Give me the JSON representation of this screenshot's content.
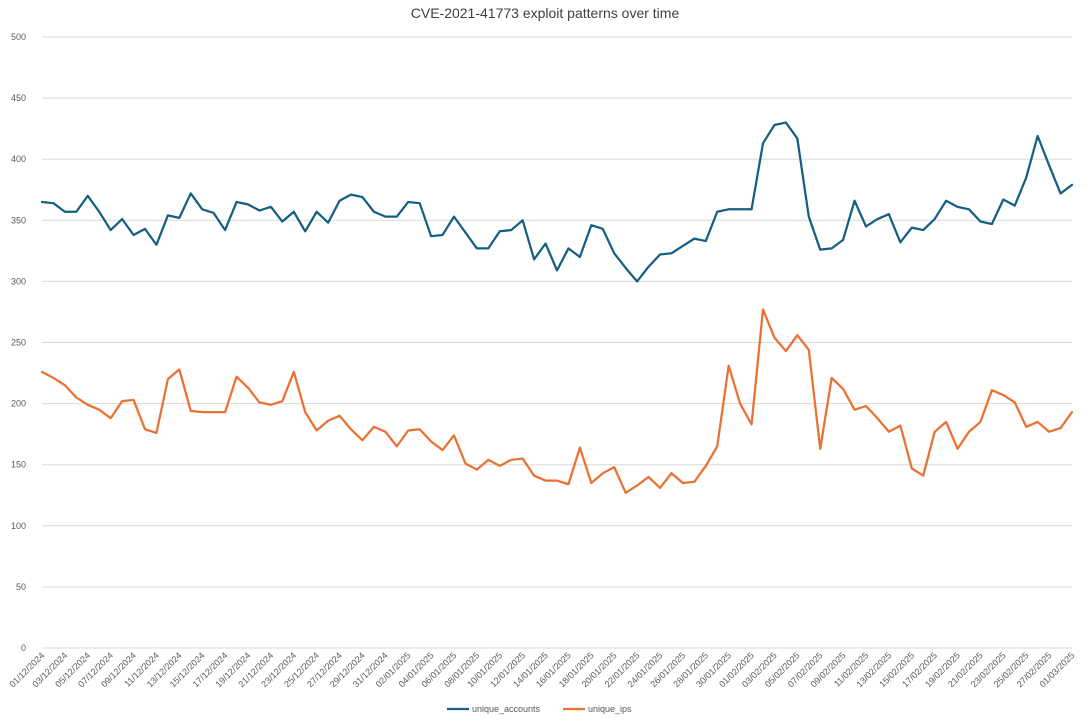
{
  "chart_data": {
    "type": "line",
    "title": "CVE-2021-41773 exploit patterns over time",
    "xlabel": "",
    "ylabel": "",
    "ylim": [
      0,
      500
    ],
    "yticks": [
      0,
      50,
      100,
      150,
      200,
      250,
      300,
      350,
      400,
      450,
      500
    ],
    "grid": true,
    "legend_position": "bottom",
    "x": [
      "01/12/2024",
      "02/12/2024",
      "03/12/2024",
      "04/12/2024",
      "05/12/2024",
      "06/12/2024",
      "07/12/2024",
      "08/12/2024",
      "09/12/2024",
      "10/12/2024",
      "11/12/2024",
      "12/12/2024",
      "13/12/2024",
      "14/12/2024",
      "15/12/2024",
      "16/12/2024",
      "17/12/2024",
      "18/12/2024",
      "19/12/2024",
      "20/12/2024",
      "21/12/2024",
      "22/12/2024",
      "23/12/2024",
      "24/12/2024",
      "25/12/2024",
      "26/12/2024",
      "27/12/2024",
      "28/12/2024",
      "29/12/2024",
      "30/12/2024",
      "31/12/2024",
      "01/01/2025",
      "02/01/2025",
      "03/01/2025",
      "04/01/2025",
      "05/01/2025",
      "06/01/2025",
      "07/01/2025",
      "08/01/2025",
      "09/01/2025",
      "10/01/2025",
      "11/01/2025",
      "12/01/2025",
      "13/01/2025",
      "14/01/2025",
      "15/01/2025",
      "16/01/2025",
      "17/01/2025",
      "18/01/2025",
      "19/01/2025",
      "20/01/2025",
      "21/01/2025",
      "22/01/2025",
      "23/01/2025",
      "24/01/2025",
      "25/01/2025",
      "26/01/2025",
      "27/01/2025",
      "28/01/2025",
      "29/01/2025",
      "30/01/2025",
      "31/01/2025",
      "01/02/2025",
      "02/02/2025",
      "03/02/2025",
      "04/02/2025",
      "05/02/2025",
      "06/02/2025",
      "07/02/2025",
      "08/02/2025",
      "09/02/2025",
      "10/02/2025",
      "11/02/2025",
      "12/02/2025",
      "13/02/2025",
      "14/02/2025",
      "15/02/2025",
      "16/02/2025",
      "17/02/2025",
      "18/02/2025",
      "19/02/2025",
      "20/02/2025",
      "21/02/2025",
      "22/02/2025",
      "23/02/2025",
      "24/02/2025",
      "25/02/2025",
      "26/02/2025",
      "27/02/2025",
      "28/02/2025",
      "01/03/2025"
    ],
    "x_tick_labels": [
      "01/12/2024",
      "03/12/2024",
      "05/12/2024",
      "07/12/2024",
      "09/12/2024",
      "11/12/2024",
      "13/12/2024",
      "15/12/2024",
      "17/12/2024",
      "19/12/2024",
      "21/12/2024",
      "23/12/2024",
      "25/12/2024",
      "27/12/2024",
      "29/12/2024",
      "31/12/2024",
      "02/01/2025",
      "04/01/2025",
      "06/01/2025",
      "08/01/2025",
      "10/01/2025",
      "12/01/2025",
      "14/01/2025",
      "16/01/2025",
      "18/01/2025",
      "20/01/2025",
      "22/01/2025",
      "24/01/2025",
      "26/01/2025",
      "28/01/2025",
      "30/01/2025",
      "01/02/2025",
      "03/02/2025",
      "05/02/2025",
      "07/02/2025",
      "09/02/2025",
      "11/02/2025",
      "13/02/2025",
      "15/02/2025",
      "17/02/2025",
      "19/02/2025",
      "21/02/2025",
      "23/02/2025",
      "25/02/2025",
      "27/02/2025",
      "01/03/2025"
    ],
    "series": [
      {
        "name": "unique_accounts",
        "color": "#156082",
        "values": [
          365,
          364,
          357,
          357,
          370,
          357,
          342,
          351,
          338,
          343,
          330,
          354,
          352,
          372,
          359,
          356,
          342,
          365,
          363,
          358,
          361,
          349,
          357,
          341,
          357,
          348,
          366,
          371,
          369,
          357,
          353,
          353,
          365,
          364,
          337,
          338,
          353,
          340,
          327,
          327,
          341,
          342,
          350,
          318,
          331,
          309,
          327,
          320,
          346,
          343,
          323,
          311,
          300,
          312,
          322,
          323,
          329,
          335,
          333,
          357,
          359,
          359,
          359,
          413,
          428,
          430,
          417,
          353,
          326,
          327,
          334,
          366,
          345,
          351,
          355,
          332,
          344,
          342,
          351,
          366,
          361,
          359,
          349,
          347,
          367,
          362,
          385,
          419,
          395,
          372,
          379
        ]
      },
      {
        "name": "unique_ips",
        "color": "#E97132",
        "values": [
          226,
          221,
          215,
          205,
          199,
          195,
          188,
          202,
          203,
          179,
          176,
          220,
          228,
          194,
          193,
          193,
          193,
          222,
          213,
          201,
          199,
          202,
          226,
          193,
          178,
          186,
          190,
          179,
          170,
          181,
          177,
          165,
          178,
          179,
          169,
          162,
          174,
          151,
          146,
          154,
          149,
          154,
          155,
          141,
          137,
          137,
          134,
          164,
          135,
          143,
          148,
          127,
          133,
          140,
          131,
          143,
          135,
          136,
          149,
          165,
          231,
          200,
          183,
          277,
          254,
          243,
          256,
          244,
          163,
          221,
          212,
          195,
          198,
          188,
          177,
          182,
          147,
          141,
          177,
          185,
          163,
          177,
          185,
          211,
          207,
          201,
          181,
          185,
          177,
          180,
          193
        ]
      }
    ]
  }
}
